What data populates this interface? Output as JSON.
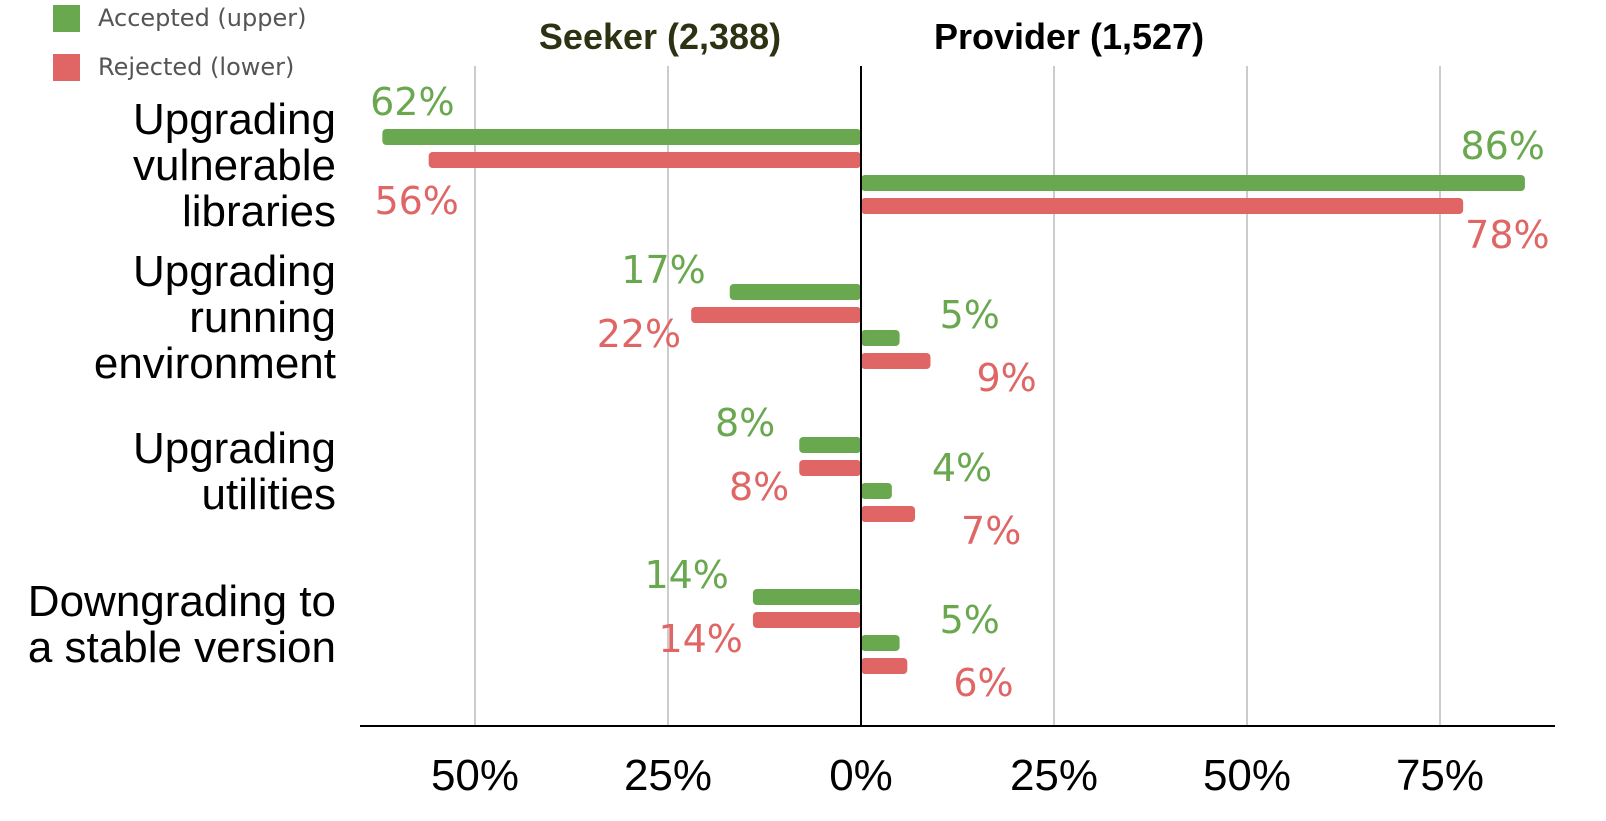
{
  "chart_data": {
    "type": "bar",
    "orientation": "horizontal-diverging",
    "categories": [
      [
        "Upgrading",
        "vulnerable",
        "libraries"
      ],
      [
        "Upgrading",
        "running",
        "environment"
      ],
      [
        "Upgrading",
        "utilities"
      ],
      [
        "Downgrading to",
        "a stable version"
      ]
    ],
    "sides": [
      {
        "key": "seeker",
        "title": "Seeker (2,388)",
        "title_color": "#2d3312",
        "direction": "left",
        "series": [
          {
            "name": "Accepted (upper)",
            "values": [
              62,
              17,
              8,
              14
            ],
            "labels": [
              "62%",
              "17%",
              "8%",
              "14%"
            ]
          },
          {
            "name": "Rejected (lower)",
            "values": [
              56,
              22,
              8,
              14
            ],
            "labels": [
              "56%",
              "22%",
              "8%",
              "14%"
            ]
          }
        ]
      },
      {
        "key": "provider",
        "title": "Provider (1,527)",
        "title_color": "#000000",
        "direction": "right",
        "series": [
          {
            "name": "Accepted (upper)",
            "values": [
              86,
              5,
              4,
              5
            ],
            "labels": [
              "86%",
              "5%",
              "4%",
              "5%"
            ]
          },
          {
            "name": "Rejected (lower)",
            "values": [
              78,
              9,
              7,
              6
            ],
            "labels": [
              "78%",
              "9%",
              "7%",
              "6%"
            ]
          }
        ]
      }
    ],
    "legend": {
      "position": "top-left",
      "entries": [
        {
          "label": "Accepted (upper)",
          "color": "#6aa84f"
        },
        {
          "label": "Rejected (lower)",
          "color": "#e06666"
        }
      ]
    },
    "x_ticks": [
      {
        "value": -50,
        "label": "50%"
      },
      {
        "value": -25,
        "label": "25%"
      },
      {
        "value": 0,
        "label": "0%"
      },
      {
        "value": 25,
        "label": "25%"
      },
      {
        "value": 50,
        "label": "50%"
      },
      {
        "value": 75,
        "label": "75%"
      }
    ],
    "xlim": [
      -63,
      88
    ],
    "grid": true,
    "colors": {
      "accepted": "#6aa84f",
      "rejected": "#e06666",
      "grid": "#cccccc",
      "axis": "#000000"
    }
  }
}
